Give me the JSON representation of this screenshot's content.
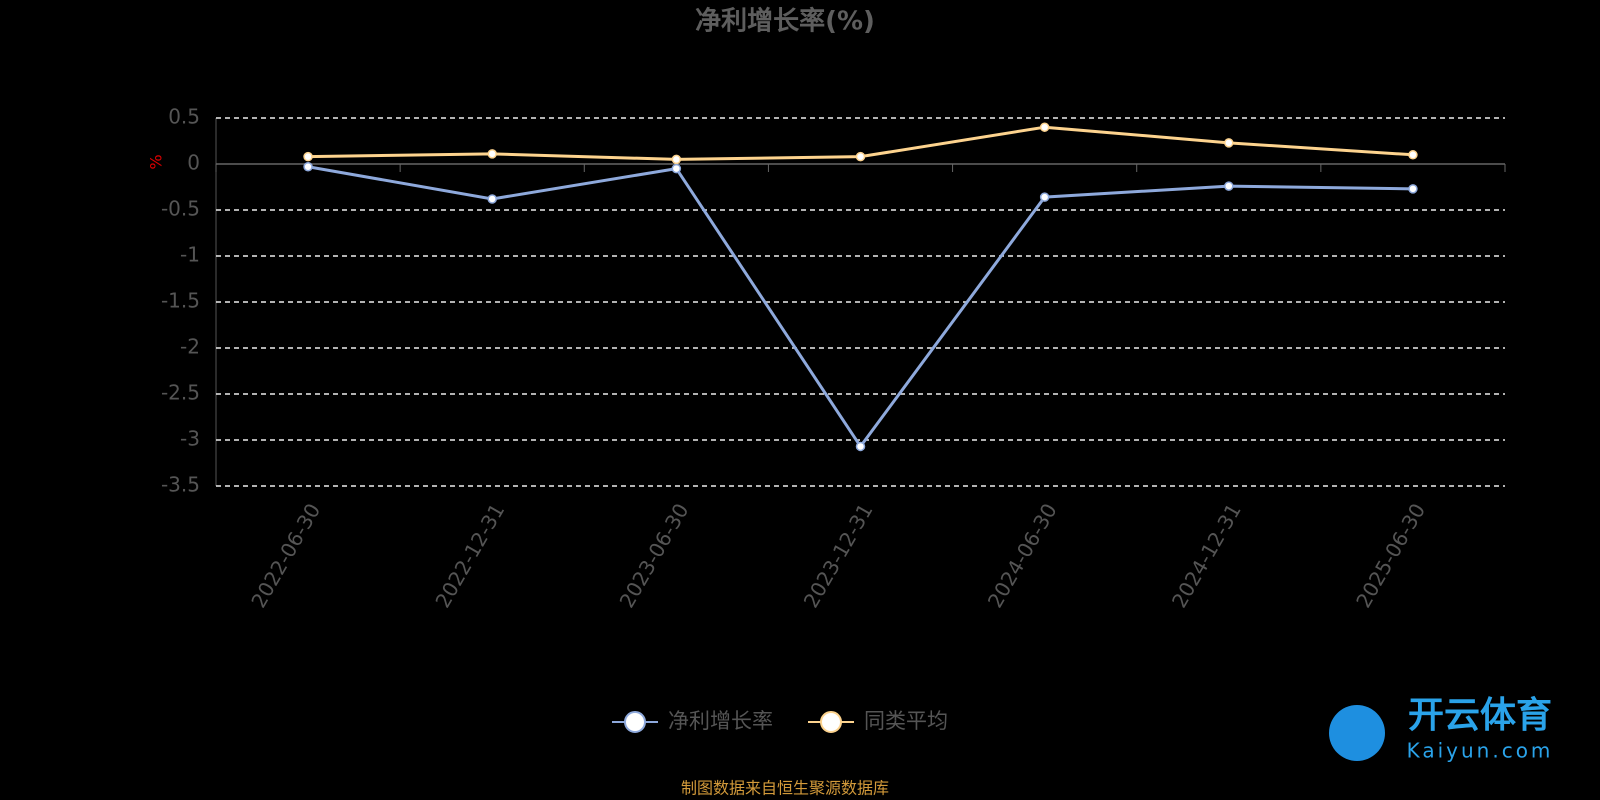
{
  "chart_data": {
    "type": "line",
    "title": "净利增长率(%)",
    "y_label": "%",
    "categories": [
      "2022-06-30",
      "2022-12-31",
      "2023-06-30",
      "2023-12-31",
      "2024-06-30",
      "2024-12-31",
      "2025-06-30"
    ],
    "series": [
      {
        "name": "净利增长率",
        "color": "#8ea9dc",
        "values": [
          -0.03,
          -0.38,
          -0.05,
          -3.07,
          -0.36,
          -0.24,
          -0.27
        ]
      },
      {
        "name": "同类平均",
        "color": "#fdd38e",
        "values": [
          0.08,
          0.11,
          0.05,
          0.08,
          0.4,
          0.23,
          0.1
        ]
      }
    ],
    "ylim": [
      -3.5,
      0.5
    ],
    "yticks": [
      -3.5,
      -3,
      -2.5,
      -2,
      -1.5,
      -1,
      -0.5,
      0,
      0.5
    ],
    "grid": true,
    "footer": "制图数据来自恒生聚源数据库",
    "watermark": {
      "brand": "开云体育",
      "site": "Kaiyun.com"
    }
  }
}
